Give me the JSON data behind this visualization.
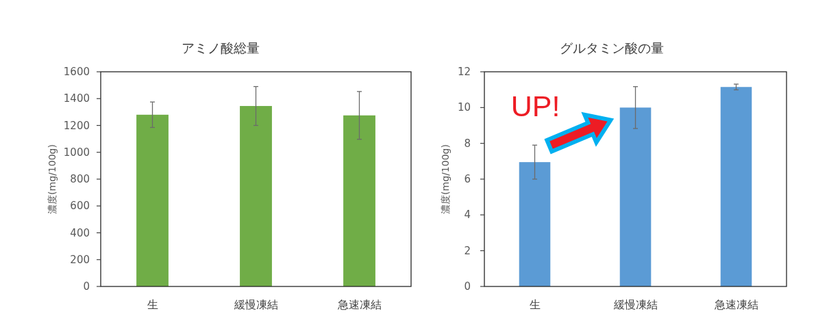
{
  "chart_data": [
    {
      "type": "bar",
      "title": "アミノ酸総量",
      "ylabel": "濃度(mg/100g)",
      "categories": [
        "生",
        "緩慢凍結",
        "急速凍結"
      ],
      "values": [
        1280,
        1345,
        1275
      ],
      "errors": [
        95,
        145,
        178
      ],
      "color": "#70ad47",
      "ylim": [
        0,
        1600
      ],
      "yticks": [
        0,
        200,
        400,
        600,
        800,
        1000,
        1200,
        1400,
        1600
      ]
    },
    {
      "type": "bar",
      "title": "グルタミン酸の量",
      "ylabel": "濃度(mg/100g)",
      "categories": [
        "生",
        "緩慢凍結",
        "急速凍結"
      ],
      "values": [
        6.95,
        10.0,
        11.15
      ],
      "errors": [
        0.95,
        1.17,
        0.16
      ],
      "color": "#5b9bd5",
      "ylim": [
        0,
        12
      ],
      "yticks": [
        0,
        2,
        4,
        6,
        8,
        10,
        12
      ],
      "annotations": [
        "UP!"
      ]
    }
  ]
}
